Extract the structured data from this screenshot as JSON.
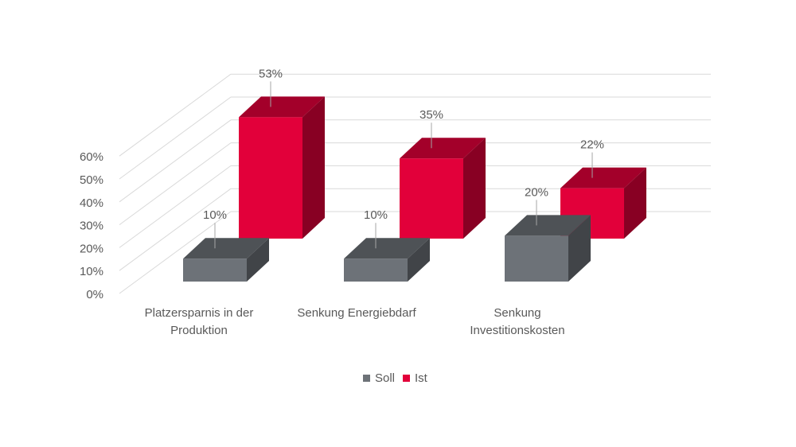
{
  "chart_data": {
    "type": "bar",
    "categories": [
      "Platzersparnis in der Produktion",
      "Senkung Energiebdarf",
      "Senkung Investitionskosten"
    ],
    "category_lines": [
      [
        "Platzersparnis in der",
        "Produktion"
      ],
      [
        "Senkung Energiebdarf"
      ],
      [
        "Senkung",
        "Investitionskosten"
      ]
    ],
    "series": [
      {
        "name": "Soll",
        "values": [
          10,
          10,
          20
        ],
        "labels": [
          "10%",
          "10%",
          "20%"
        ],
        "color": "#6d7278"
      },
      {
        "name": "Ist",
        "values": [
          53,
          35,
          22
        ],
        "labels": [
          "53%",
          "35%",
          "22%"
        ],
        "color": "#e2003a"
      }
    ],
    "y_ticks": [
      "0%",
      "10%",
      "20%",
      "30%",
      "40%",
      "50%",
      "60%"
    ],
    "ylim": [
      0,
      60
    ],
    "grid": true,
    "legend": "bottom",
    "title": "",
    "xlabel": "",
    "ylabel": ""
  }
}
